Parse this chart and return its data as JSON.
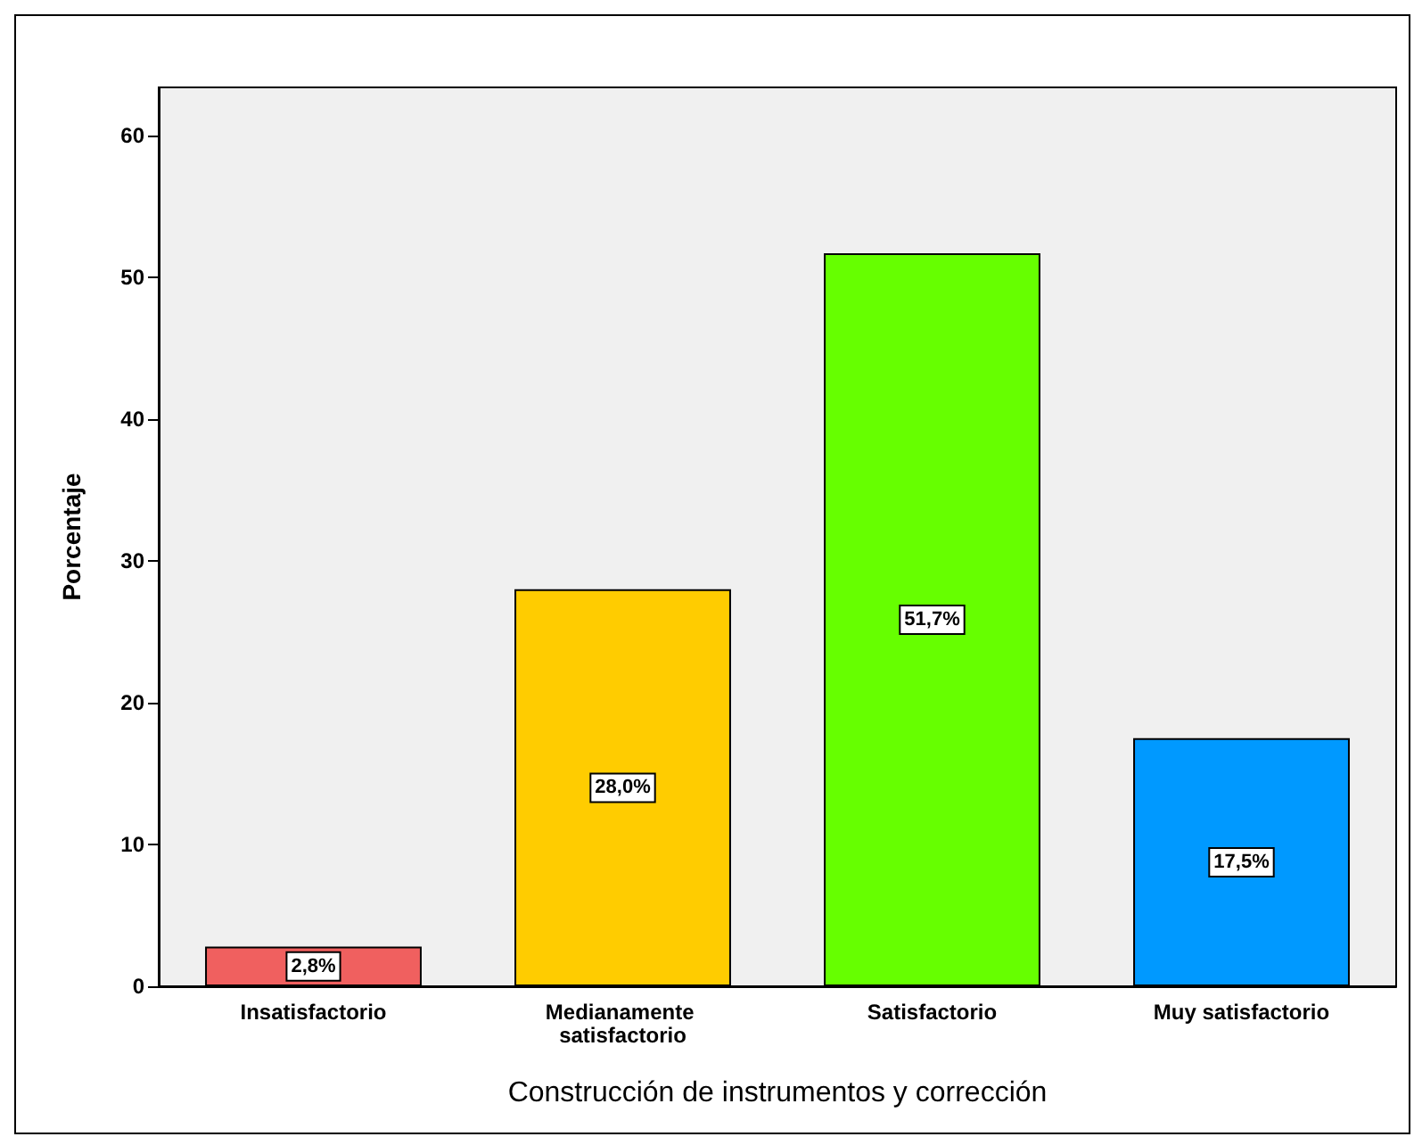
{
  "chart_data": {
    "type": "bar",
    "xlabel": "Construcción de instrumentos y corrección",
    "ylabel": "Porcentaje",
    "categories": [
      "Insatisfactorio",
      "Medianamente satisfactorio",
      "Satisfactorio",
      "Muy satisfactorio"
    ],
    "values": [
      2.8,
      28.0,
      51.7,
      17.5
    ],
    "colors": [
      "#f0605f",
      "#ffcc00",
      "#66ff00",
      "#0099ff"
    ],
    "value_labels": [
      "2,8%",
      "28,0%",
      "51,7%",
      "17,5%"
    ],
    "ylim": [
      0,
      63.4
    ],
    "yticks": [
      0,
      10,
      20,
      30,
      40,
      50,
      60
    ],
    "grid": false
  }
}
